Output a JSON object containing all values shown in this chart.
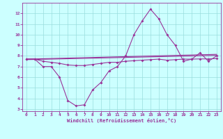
{
  "x_values": [
    0,
    1,
    2,
    3,
    4,
    5,
    6,
    7,
    8,
    9,
    10,
    11,
    12,
    13,
    14,
    15,
    16,
    17,
    18,
    19,
    20,
    21,
    22,
    23
  ],
  "line1": [
    7.7,
    7.7,
    7.0,
    7.0,
    6.0,
    3.8,
    3.3,
    3.4,
    4.8,
    5.5,
    6.6,
    7.0,
    8.0,
    10.0,
    11.3,
    12.4,
    11.5,
    10.0,
    9.0,
    7.5,
    7.7,
    8.3,
    7.5,
    8.0
  ],
  "line2": [
    7.7,
    7.7,
    7.5,
    7.4,
    7.3,
    7.15,
    7.1,
    7.1,
    7.2,
    7.3,
    7.4,
    7.4,
    7.5,
    7.55,
    7.6,
    7.65,
    7.7,
    7.6,
    7.65,
    7.7,
    7.7,
    7.72,
    7.72,
    7.75
  ],
  "line3_x": [
    0,
    23
  ],
  "line3_y": [
    7.65,
    8.05
  ],
  "line4_x": [
    0,
    23
  ],
  "line4_y": [
    7.7,
    8.15
  ],
  "line_color": "#993399",
  "bg_color": "#ccffff",
  "grid_color": "#99dddd",
  "xlabel": "Windchill (Refroidissement éolien,°C)",
  "xlim": [
    -0.5,
    23.5
  ],
  "ylim": [
    2.8,
    13.0
  ],
  "yticks": [
    3,
    4,
    5,
    6,
    7,
    8,
    9,
    10,
    11,
    12
  ],
  "xticks": [
    0,
    1,
    2,
    3,
    4,
    5,
    6,
    7,
    8,
    9,
    10,
    11,
    12,
    13,
    14,
    15,
    16,
    17,
    18,
    19,
    20,
    21,
    22,
    23
  ]
}
